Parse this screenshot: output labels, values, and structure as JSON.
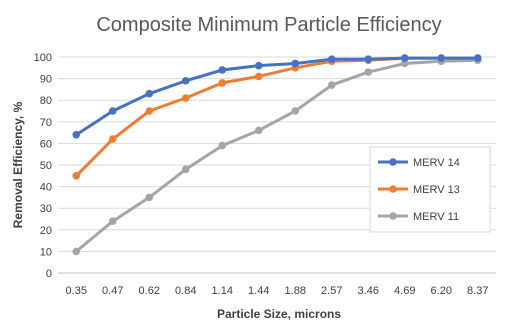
{
  "chart_data": {
    "type": "line",
    "title": "Composite Minimum Particle Efficiency",
    "xlabel": "Particle Size, microns",
    "ylabel": "Removal Efficiency, %",
    "categories": [
      "0.35",
      "0.47",
      "0.62",
      "0.84",
      "1.14",
      "1.44",
      "1.88",
      "2.57",
      "3.46",
      "4.69",
      "6.20",
      "8.37"
    ],
    "yticks": [
      "0",
      "10",
      "20",
      "30",
      "40",
      "50",
      "60",
      "70",
      "80",
      "90",
      "100"
    ],
    "ylim": [
      0,
      100
    ],
    "grid": true,
    "legend_position": "right",
    "series": [
      {
        "name": "MERV 14",
        "color": "#4472C4",
        "values": [
          64,
          75,
          83,
          89,
          94,
          96,
          97,
          99,
          99,
          99.5,
          99.5,
          99.5
        ]
      },
      {
        "name": "MERV 13",
        "color": "#ED7D31",
        "values": [
          45,
          62,
          75,
          81,
          88,
          91,
          95,
          98,
          98.5,
          99.5,
          99.5,
          99.5
        ]
      },
      {
        "name": "MERV 11",
        "color": "#A5A5A5",
        "values": [
          10,
          24,
          35,
          48,
          59,
          66,
          75,
          87,
          93,
          97,
          98,
          98.5
        ]
      }
    ]
  }
}
